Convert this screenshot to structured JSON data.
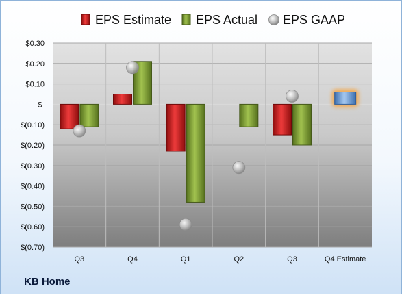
{
  "company": "KB Home",
  "chart_data": {
    "type": "bar",
    "categories": [
      "Q3",
      "Q4",
      "Q1",
      "Q2",
      "Q3",
      "Q4 Estimate"
    ],
    "series": [
      {
        "name": "EPS Estimate",
        "values": [
          -0.12,
          0.05,
          -0.23,
          null,
          -0.15,
          null
        ],
        "color": "#cc1f1f"
      },
      {
        "name": "EPS Actual",
        "values": [
          -0.11,
          0.21,
          -0.48,
          -0.11,
          -0.2,
          null
        ],
        "color": "#7a9a2e"
      },
      {
        "name": "EPS GAAP",
        "values": [
          -0.13,
          0.18,
          -0.59,
          -0.31,
          0.04,
          null
        ],
        "color": "#b8b8b8"
      }
    ],
    "forecast": {
      "category": "Q4 Estimate",
      "value": 0.06,
      "color": "#6f9fd8",
      "glow": "#f5a543"
    },
    "ylim": [
      -0.7,
      0.3
    ],
    "yticks": [
      0.3,
      0.2,
      0.1,
      0,
      -0.1,
      -0.2,
      -0.3,
      -0.4,
      -0.5,
      -0.6,
      -0.7
    ],
    "ytick_labels": [
      "$0.30",
      "$0.20",
      "$0.10",
      "$-",
      "$(0.10)",
      "$(0.20)",
      "$(0.30)",
      "$(0.40)",
      "$(0.50)",
      "$(0.60)",
      "$(0.70)"
    ],
    "legend_position": "top",
    "grid": true
  }
}
